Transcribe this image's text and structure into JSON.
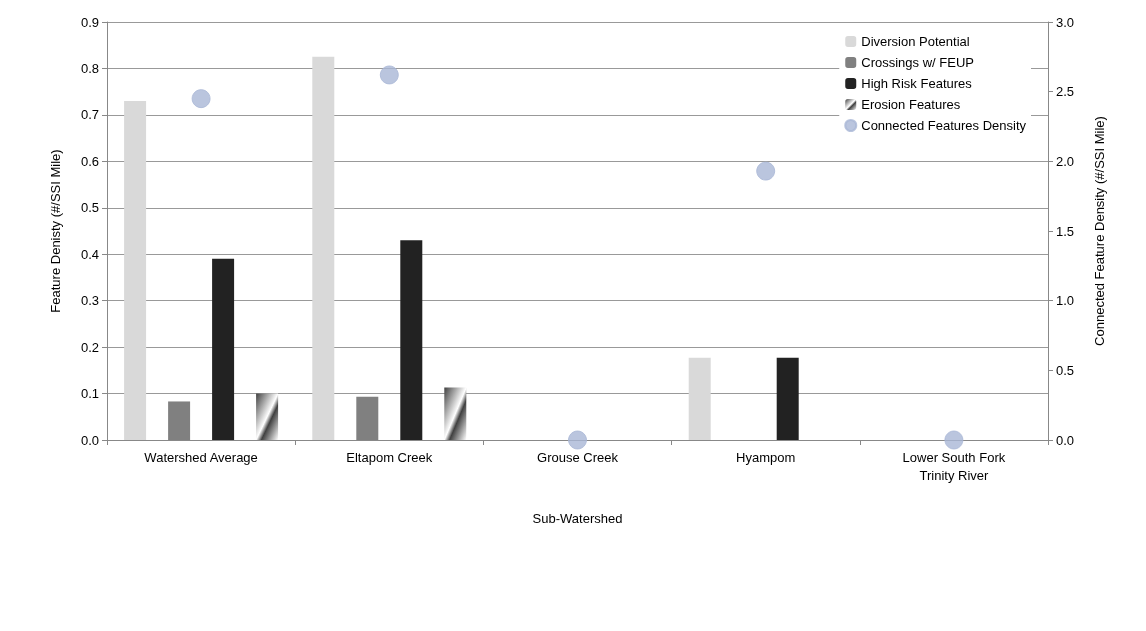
{
  "chart_data": {
    "type": "bar",
    "xlabel": "Sub-Watershed",
    "ylabel": "Feature Denisty (#/SSI Mile)",
    "y2label": "Connected Feature Density (#/SSI Mile)",
    "categories": [
      "Watershed Average",
      "Eltapom Creek",
      "Grouse Creek",
      "Hyampom",
      "Lower South Fork\nTrinity River"
    ],
    "series": [
      {
        "name": "Diversion Potential",
        "color": "#d9d9d9",
        "values": [
          0.73,
          0.825,
          0,
          0.177,
          0
        ]
      },
      {
        "name": "Crossings w/ FEUP",
        "color": "#808080",
        "values": [
          0.083,
          0.093,
          0,
          0,
          0
        ]
      },
      {
        "name": "High Risk Features",
        "color": "#222222",
        "values": [
          0.39,
          0.43,
          0,
          0.177,
          0
        ]
      },
      {
        "name": "Erosion Features",
        "color": "#404040",
        "values": [
          0.1,
          0.113,
          0,
          0,
          0
        ]
      },
      {
        "name": "Connected Features Density",
        "type": "scatter",
        "axis": "y2",
        "color": "#a9b7d6",
        "x": [
          "Watershed Average",
          "Eltapom Creek",
          "Grouse Creek",
          "Hyampom",
          "Lower South Fork\nTrinity River"
        ],
        "values": [
          2.45,
          2.62,
          0,
          1.93,
          0
        ]
      }
    ],
    "ylim": [
      0,
      0.9
    ],
    "yticks": [
      {
        "value": 0,
        "label": "0.0"
      },
      0.1,
      0.2,
      0.3,
      0.4,
      0.5,
      0.6,
      0.7,
      0.8,
      0.9
    ],
    "y2lim": [
      0,
      3
    ],
    "y2ticks": [
      {
        "value": 0,
        "label": "0.0"
      },
      0.5,
      {
        "value": 1,
        "label": "1.0"
      },
      1.5,
      {
        "value": 2,
        "label": "2.0"
      },
      2.5,
      {
        "value": 3,
        "label": "3.0"
      }
    ],
    "grid": "y",
    "legend": "top right",
    "marker": "circle"
  }
}
